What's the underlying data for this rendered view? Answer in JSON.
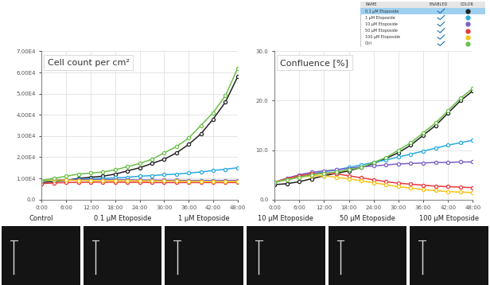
{
  "chart_data": [
    {
      "type": "line",
      "title": "Cell count per cm²",
      "x": [
        0,
        3,
        6,
        9,
        12,
        15,
        18,
        21,
        24,
        27,
        30,
        33,
        36,
        39,
        42,
        45,
        48
      ],
      "xlim": [
        0,
        48
      ],
      "xticks": [
        {
          "value": 0,
          "label": "0:00"
        },
        {
          "value": 6,
          "label": "6:00"
        },
        {
          "value": 12,
          "label": "12:00"
        },
        {
          "value": 18,
          "label": "18:00"
        },
        {
          "value": 24,
          "label": "24:00"
        },
        {
          "value": 30,
          "label": "30:00"
        },
        {
          "value": 36,
          "label": "36:00"
        },
        {
          "value": 42,
          "label": "42:00"
        },
        {
          "value": 48,
          "label": "48:00"
        }
      ],
      "ylim": [
        0,
        70000
      ],
      "yticks": [
        {
          "value": 0,
          "label": "0.0"
        },
        {
          "value": 10000,
          "label": "1.00E4"
        },
        {
          "value": 20000,
          "label": "2.00E4"
        },
        {
          "value": 30000,
          "label": "3.00E4"
        },
        {
          "value": 40000,
          "label": "4.00E4"
        },
        {
          "value": 50000,
          "label": "5.00E4"
        },
        {
          "value": 60000,
          "label": "6.00E4"
        },
        {
          "value": 70000,
          "label": "7.00E4"
        }
      ],
      "grid": true,
      "marker": "circle",
      "line_style": "solid",
      "series": [
        {
          "name": "0.1 µM Etoposide",
          "color": "#222222",
          "values": [
            8000,
            8500,
            9000,
            10000,
            10500,
            11000,
            12000,
            13500,
            15000,
            17000,
            19000,
            22000,
            26000,
            31000,
            38000,
            46000,
            58000
          ]
        },
        {
          "name": "1 µM Etoposide",
          "color": "#29abe2",
          "values": [
            8500,
            9000,
            9200,
            9500,
            9700,
            10000,
            10200,
            10500,
            11000,
            11300,
            11700,
            12000,
            12500,
            13000,
            13700,
            14300,
            15000
          ]
        },
        {
          "name": "10 µM Etoposide",
          "color": "#7b5fc4",
          "values": [
            9000,
            9200,
            9300,
            9300,
            9400,
            9400,
            9300,
            9300,
            9200,
            9200,
            9100,
            9100,
            9000,
            9000,
            9000,
            9000,
            9000
          ]
        },
        {
          "name": "50 µM Etoposide",
          "color": "#e8393f",
          "values": [
            7500,
            7800,
            8000,
            8100,
            8200,
            8200,
            8200,
            8100,
            8100,
            8000,
            8000,
            8000,
            8000,
            8000,
            8000,
            8000,
            8000
          ]
        },
        {
          "name": "100 µM Etoposide",
          "color": "#f5c518",
          "values": [
            9000,
            9100,
            9100,
            9000,
            9000,
            9000,
            8900,
            8900,
            8800,
            8800,
            8700,
            8700,
            8600,
            8600,
            8500,
            8500,
            8500
          ]
        },
        {
          "name": "Ctrl",
          "color": "#6cc04a",
          "values": [
            9000,
            10000,
            11000,
            12000,
            12500,
            13000,
            14000,
            15500,
            17000,
            19000,
            22000,
            25000,
            29000,
            35000,
            41000,
            49000,
            62000
          ]
        }
      ]
    },
    {
      "type": "line",
      "title": "Confluence [%]",
      "x": [
        0,
        3,
        6,
        9,
        12,
        15,
        18,
        21,
        24,
        27,
        30,
        33,
        36,
        39,
        42,
        45,
        48
      ],
      "xlim": [
        0,
        48
      ],
      "xticks": [
        {
          "value": 0,
          "label": "0:00"
        },
        {
          "value": 6,
          "label": "6:00"
        },
        {
          "value": 12,
          "label": "12:00"
        },
        {
          "value": 18,
          "label": "18:00"
        },
        {
          "value": 24,
          "label": "24:00"
        },
        {
          "value": 30,
          "label": "30:00"
        },
        {
          "value": 36,
          "label": "36:00"
        },
        {
          "value": 42,
          "label": "42:00"
        },
        {
          "value": 48,
          "label": "48:00"
        }
      ],
      "ylim": [
        0,
        30
      ],
      "yticks": [
        {
          "value": 0,
          "label": "0.0"
        },
        {
          "value": 10,
          "label": "10.0"
        },
        {
          "value": 20,
          "label": "20.0"
        },
        {
          "value": 30,
          "label": "30.0"
        }
      ],
      "grid": true,
      "marker": "circle",
      "line_style": "solid",
      "series": [
        {
          "name": "0.1 µM Etoposide",
          "color": "#222222",
          "values": [
            3.0,
            3.2,
            3.6,
            4.2,
            4.8,
            5.3,
            5.8,
            6.5,
            7.3,
            8.3,
            9.5,
            11.0,
            13.0,
            15.0,
            17.5,
            20.0,
            22.0
          ]
        },
        {
          "name": "1 µM Etoposide",
          "color": "#29abe2",
          "values": [
            3.5,
            4.2,
            4.8,
            5.2,
            5.6,
            6.0,
            6.5,
            7.0,
            7.5,
            8.0,
            8.6,
            9.2,
            9.8,
            10.4,
            11.0,
            11.5,
            12.0
          ]
        },
        {
          "name": "10 µM Etoposide",
          "color": "#7b5fc4",
          "values": [
            3.5,
            4.3,
            5.0,
            5.5,
            5.8,
            6.0,
            6.3,
            6.6,
            6.8,
            7.0,
            7.2,
            7.3,
            7.4,
            7.5,
            7.5,
            7.6,
            7.6
          ]
        },
        {
          "name": "50 µM Etoposide",
          "color": "#e8393f",
          "values": [
            3.5,
            4.2,
            4.8,
            5.2,
            5.3,
            5.2,
            4.8,
            4.4,
            4.0,
            3.6,
            3.3,
            3.1,
            2.9,
            2.7,
            2.6,
            2.5,
            2.4
          ]
        },
        {
          "name": "100 µM Etoposide",
          "color": "#f5c518",
          "values": [
            3.5,
            4.0,
            4.5,
            4.8,
            4.8,
            4.5,
            4.2,
            3.8,
            3.4,
            3.0,
            2.6,
            2.3,
            2.0,
            1.8,
            1.6,
            1.5,
            1.4
          ]
        },
        {
          "name": "Ctrl",
          "color": "#6cc04a",
          "values": [
            3.5,
            4.0,
            4.5,
            5.0,
            5.3,
            5.6,
            6.0,
            6.5,
            7.5,
            8.5,
            10.0,
            11.5,
            13.5,
            15.5,
            18.0,
            20.5,
            22.5
          ]
        }
      ]
    }
  ],
  "legend_table": {
    "headers": [
      "NAME",
      "ENABLED",
      "COLOR"
    ]
  },
  "image_panels": {
    "labels": [
      "Control",
      "0.1 µM Etoposide",
      "1 µM Etoposide",
      "10 µM Etoposide",
      "50 µM Etoposide",
      "100 µM Etoposide"
    ]
  }
}
